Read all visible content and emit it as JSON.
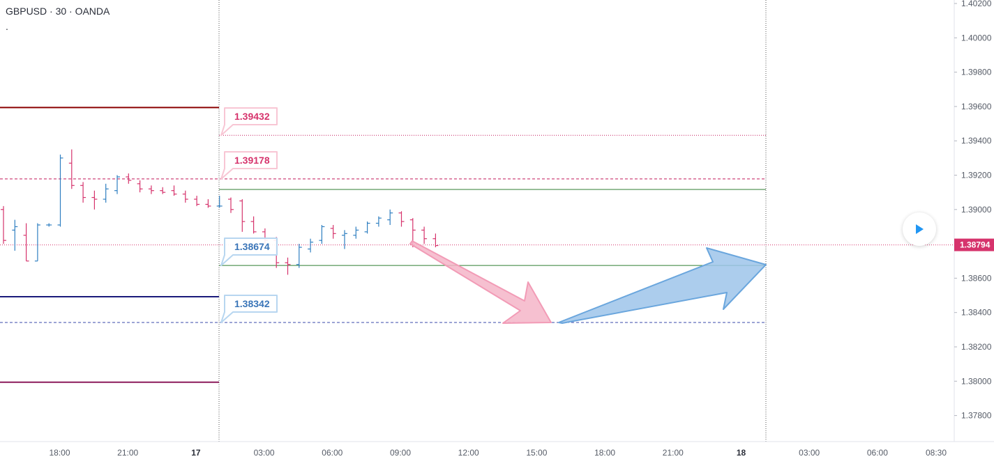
{
  "header": {
    "symbol_line": "GBPUSD · 30 · OANDA",
    "sub_line": "."
  },
  "chart_data": {
    "type": "bar",
    "chart_style": "ohlc",
    "y_axis_ticks": [
      "1.40200",
      "1.40000",
      "1.39800",
      "1.39600",
      "1.39400",
      "1.39200",
      "1.39000",
      "1.38800",
      "1.38600",
      "1.38400",
      "1.38200",
      "1.38000",
      "1.37800"
    ],
    "ylim": [
      1.3768,
      1.4022
    ],
    "x_axis_ticks": [
      {
        "label": "18:00",
        "bold": false
      },
      {
        "label": "21:00",
        "bold": false
      },
      {
        "label": "17",
        "bold": true
      },
      {
        "label": "03:00",
        "bold": false
      },
      {
        "label": "06:00",
        "bold": false
      },
      {
        "label": "09:00",
        "bold": false
      },
      {
        "label": "12:00",
        "bold": false
      },
      {
        "label": "15:00",
        "bold": false
      },
      {
        "label": "18:00",
        "bold": false
      },
      {
        "label": "21:00",
        "bold": false
      },
      {
        "label": "18",
        "bold": true
      },
      {
        "label": "03:00",
        "bold": false
      },
      {
        "label": "06:00",
        "bold": false
      },
      {
        "label": "08:30",
        "bold": false
      }
    ],
    "current_price": {
      "label": "1.38794",
      "value": 1.38794,
      "color": "#d6336c"
    },
    "up_color": "#2f7fc1",
    "down_color": "#d6336c",
    "bars": [
      {
        "o": 1.39,
        "h": 1.3902,
        "l": 1.388,
        "c": 1.3882
      },
      {
        "o": 1.3888,
        "h": 1.3894,
        "l": 1.3876,
        "c": 1.389
      },
      {
        "o": 1.3885,
        "h": 1.3892,
        "l": 1.387,
        "c": 1.387
      },
      {
        "o": 1.387,
        "h": 1.3892,
        "l": 1.387,
        "c": 1.3891
      },
      {
        "o": 1.3891,
        "h": 1.3892,
        "l": 1.389,
        "c": 1.3891
      },
      {
        "o": 1.3891,
        "h": 1.3932,
        "l": 1.389,
        "c": 1.393
      },
      {
        "o": 1.3927,
        "h": 1.3935,
        "l": 1.3912,
        "c": 1.3914
      },
      {
        "o": 1.3914,
        "h": 1.3916,
        "l": 1.3904,
        "c": 1.3907
      },
      {
        "o": 1.3907,
        "h": 1.3911,
        "l": 1.39,
        "c": 1.3906
      },
      {
        "o": 1.3906,
        "h": 1.3915,
        "l": 1.3904,
        "c": 1.3912
      },
      {
        "o": 1.3911,
        "h": 1.392,
        "l": 1.3909,
        "c": 1.3919
      },
      {
        "o": 1.3919,
        "h": 1.3921,
        "l": 1.3915,
        "c": 1.3917
      },
      {
        "o": 1.3915,
        "h": 1.3917,
        "l": 1.391,
        "c": 1.3912
      },
      {
        "o": 1.3912,
        "h": 1.3914,
        "l": 1.3909,
        "c": 1.3911
      },
      {
        "o": 1.3911,
        "h": 1.3913,
        "l": 1.3909,
        "c": 1.391
      },
      {
        "o": 1.3911,
        "h": 1.3914,
        "l": 1.3908,
        "c": 1.3909
      },
      {
        "o": 1.3909,
        "h": 1.3911,
        "l": 1.3904,
        "c": 1.3906
      },
      {
        "o": 1.3906,
        "h": 1.3908,
        "l": 1.3902,
        "c": 1.3903
      },
      {
        "o": 1.3903,
        "h": 1.3906,
        "l": 1.3901,
        "c": 1.3902
      },
      {
        "o": 1.3902,
        "h": 1.3908,
        "l": 1.3901,
        "c": 1.3902
      },
      {
        "o": 1.3906,
        "h": 1.3907,
        "l": 1.3898,
        "c": 1.39
      },
      {
        "o": 1.3905,
        "h": 1.3906,
        "l": 1.3887,
        "c": 1.3893
      },
      {
        "o": 1.3893,
        "h": 1.3896,
        "l": 1.3886,
        "c": 1.3887
      },
      {
        "o": 1.3887,
        "h": 1.3889,
        "l": 1.388,
        "c": 1.3882
      },
      {
        "o": 1.3882,
        "h": 1.3884,
        "l": 1.3866,
        "c": 1.3869
      },
      {
        "o": 1.3869,
        "h": 1.3872,
        "l": 1.3862,
        "c": 1.3868
      },
      {
        "o": 1.3868,
        "h": 1.388,
        "l": 1.3866,
        "c": 1.3878
      },
      {
        "o": 1.3877,
        "h": 1.3883,
        "l": 1.3875,
        "c": 1.3881
      },
      {
        "o": 1.3882,
        "h": 1.3891,
        "l": 1.388,
        "c": 1.389
      },
      {
        "o": 1.3889,
        "h": 1.3891,
        "l": 1.3883,
        "c": 1.3886
      },
      {
        "o": 1.3885,
        "h": 1.3888,
        "l": 1.3877,
        "c": 1.3886
      },
      {
        "o": 1.3885,
        "h": 1.389,
        "l": 1.3883,
        "c": 1.3888
      },
      {
        "o": 1.3887,
        "h": 1.3893,
        "l": 1.3886,
        "c": 1.3892
      },
      {
        "o": 1.3892,
        "h": 1.3896,
        "l": 1.389,
        "c": 1.3895
      },
      {
        "o": 1.3894,
        "h": 1.39,
        "l": 1.3891,
        "c": 1.3898
      },
      {
        "o": 1.3898,
        "h": 1.3899,
        "l": 1.389,
        "c": 1.3893
      },
      {
        "o": 1.3894,
        "h": 1.3895,
        "l": 1.3878,
        "c": 1.3888
      },
      {
        "o": 1.3888,
        "h": 1.389,
        "l": 1.388,
        "c": 1.3883
      },
      {
        "o": 1.3883,
        "h": 1.3886,
        "l": 1.3878,
        "c": 1.3879
      }
    ],
    "horizontal_levels": [
      {
        "value": 1.39594,
        "color": "#8b0000",
        "style": "solid",
        "span": "left"
      },
      {
        "value": 1.38492,
        "color": "#1a1a7a",
        "style": "solid",
        "span": "left"
      },
      {
        "value": 1.37994,
        "color": "#8b1a5a",
        "style": "solid",
        "span": "left"
      },
      {
        "value": 1.39178,
        "color": "#c2185b",
        "style": "dashed",
        "span": "full"
      },
      {
        "value": 1.38342,
        "color": "#3949ab",
        "style": "dashed",
        "span": "full"
      },
      {
        "value": 1.39432,
        "color": "#c2185b",
        "style": "dotted",
        "span": "right"
      },
      {
        "value": 1.39117,
        "color": "#2e7d32",
        "style": "solid",
        "span": "right"
      },
      {
        "value": 1.38674,
        "color": "#2e7d32",
        "style": "solid",
        "span": "right"
      }
    ],
    "level_labels": [
      {
        "text": "1.39432",
        "value": 1.39432,
        "color": "#d6336c",
        "border": "#f8c6d4"
      },
      {
        "text": "1.39178",
        "value": 1.39178,
        "color": "#d6336c",
        "border": "#f8c6d4"
      },
      {
        "text": "1.38674",
        "value": 1.38674,
        "color": "#3a75b8",
        "border": "#b7d6f0"
      },
      {
        "text": "1.38342",
        "value": 1.38342,
        "color": "#3a75b8",
        "border": "#b7d6f0"
      }
    ],
    "arrows": [
      {
        "direction": "down",
        "color": "#f4b5c8",
        "stroke": "#f29bb6"
      },
      {
        "direction": "up",
        "color": "#9ec4ea",
        "stroke": "#6aa6dd"
      }
    ]
  }
}
